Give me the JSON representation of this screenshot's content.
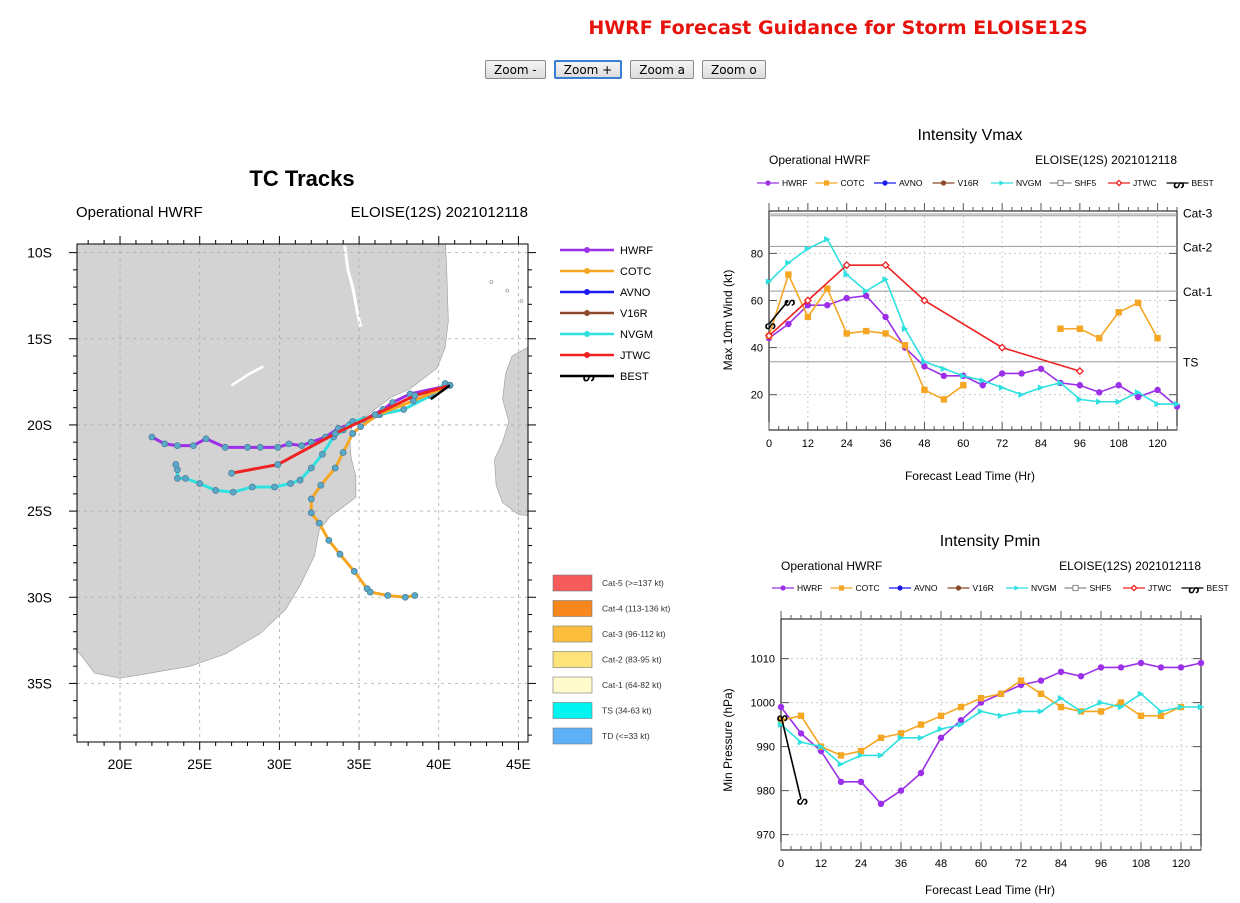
{
  "page": {
    "title": "HWRF Forecast Guidance for Storm ELOISE12S"
  },
  "toolbar": {
    "buttons": [
      "Zoom -",
      "Zoom +",
      "Zoom a",
      "Zoom o"
    ]
  },
  "colors": {
    "HWRF": "#9b30e8",
    "COTC": "#f5a623",
    "AVNO": "#1a1aee",
    "V16R": "#8b4a2b",
    "NVGM": "#2fe0e0",
    "SHF5": "#888888",
    "JTWC": "#ee2222",
    "BEST": "#000000",
    "land": "#d3d3d3",
    "title": "#e8120c"
  },
  "chart_data": [
    {
      "type": "map-tracks",
      "title": "TC Tracks",
      "subtitle_left": "Operational HWRF",
      "subtitle_right": "ELOISE(12S) 2021012118",
      "lon_range": [
        17.3,
        45.6
      ],
      "lat_range_south": [
        9.5,
        38.4
      ],
      "lon_ticks": [
        "20E",
        "25E",
        "30E",
        "35E",
        "40E",
        "45E"
      ],
      "lat_ticks": [
        "10S",
        "15S",
        "20S",
        "25S",
        "30S",
        "35S"
      ],
      "grid": true,
      "legend": [
        "HWRF",
        "COTC",
        "AVNO",
        "V16R",
        "NVGM",
        "JTWC",
        "BEST"
      ],
      "category_legend": [
        {
          "label": "Cat-5 (>=137 kt)",
          "color": "#f55b5b"
        },
        {
          "label": "Cat-4 (113-136 kt)",
          "color": "#f7871e"
        },
        {
          "label": "Cat-3 (96-112 kt)",
          "color": "#fbbd3c"
        },
        {
          "label": "Cat-2 (83-95 kt)",
          "color": "#fde37a"
        },
        {
          "label": "Cat-1 (64-82 kt)",
          "color": "#fffbcc"
        },
        {
          "label": "TS (34-63 kt)",
          "color": "#00f5f0"
        },
        {
          "label": "TD (<=33 kt)",
          "color": "#5cb0f5"
        }
      ],
      "tracks": {
        "HWRF": [
          [
            40.7,
            17.7
          ],
          [
            38.2,
            18.2
          ],
          [
            37.1,
            18.7
          ],
          [
            36.5,
            19.1
          ],
          [
            35.3,
            19.7
          ],
          [
            34.4,
            20.0
          ],
          [
            33.7,
            20.2
          ],
          [
            32.9,
            20.7
          ],
          [
            32.0,
            21.0
          ],
          [
            31.4,
            21.2
          ],
          [
            30.6,
            21.1
          ],
          [
            29.9,
            21.3
          ],
          [
            28.8,
            21.3
          ],
          [
            28.0,
            21.3
          ],
          [
            26.6,
            21.3
          ],
          [
            25.4,
            20.8
          ],
          [
            24.6,
            21.2
          ],
          [
            23.6,
            21.2
          ],
          [
            22.8,
            21.1
          ],
          [
            22.0,
            20.7
          ]
        ],
        "COTC": [
          [
            40.7,
            17.7
          ],
          [
            38.4,
            18.6
          ],
          [
            36.2,
            19.4
          ],
          [
            35.1,
            20.1
          ],
          [
            34.6,
            20.5
          ],
          [
            34.0,
            21.6
          ],
          [
            33.5,
            22.5
          ],
          [
            32.6,
            23.5
          ],
          [
            32.0,
            24.3
          ],
          [
            32.0,
            25.1
          ],
          [
            32.5,
            25.7
          ],
          [
            33.1,
            26.7
          ],
          [
            33.8,
            27.5
          ],
          [
            34.7,
            28.5
          ],
          [
            35.5,
            29.5
          ],
          [
            35.7,
            29.7
          ],
          [
            36.8,
            29.9
          ],
          [
            37.9,
            30.0
          ],
          [
            38.5,
            29.9
          ]
        ],
        "NVGM": [
          [
            40.4,
            17.6
          ],
          [
            39.5,
            18.3
          ],
          [
            37.8,
            19.1
          ],
          [
            36.3,
            19.4
          ],
          [
            34.6,
            19.8
          ],
          [
            34.0,
            20.3
          ],
          [
            33.4,
            20.7
          ],
          [
            32.7,
            21.7
          ],
          [
            32.0,
            22.5
          ],
          [
            31.3,
            23.2
          ],
          [
            30.7,
            23.4
          ],
          [
            29.7,
            23.6
          ],
          [
            28.3,
            23.6
          ],
          [
            27.1,
            23.9
          ],
          [
            26.0,
            23.8
          ],
          [
            25.0,
            23.4
          ],
          [
            24.1,
            23.1
          ],
          [
            23.6,
            23.1
          ],
          [
            23.6,
            22.6
          ],
          [
            23.5,
            22.3
          ]
        ],
        "JTWC": [
          [
            40.7,
            17.7
          ],
          [
            38.5,
            18.3
          ],
          [
            36.0,
            19.4
          ],
          [
            33.5,
            20.5
          ],
          [
            29.9,
            22.3
          ],
          [
            27.0,
            22.8
          ]
        ],
        "BEST": [
          [
            39.5,
            18.5
          ],
          [
            40.7,
            17.7
          ]
        ]
      }
    },
    {
      "type": "line",
      "title": "Intensity Vmax",
      "subtitle_left": "Operational HWRF",
      "subtitle_right": "ELOISE(12S) 2021012118",
      "xlabel": "Forecast Lead Time (Hr)",
      "ylabel": "Max 10m Wind (kt)",
      "xlim": [
        0,
        126
      ],
      "ylim": [
        5,
        98
      ],
      "xticks": [
        0,
        12,
        24,
        36,
        48,
        60,
        72,
        84,
        96,
        108,
        120
      ],
      "yticks": [
        20,
        40,
        60,
        80
      ],
      "grid": true,
      "legend": [
        "HWRF",
        "COTC",
        "AVNO",
        "V16R",
        "NVGM",
        "SHF5",
        "JTWC",
        "BEST"
      ],
      "thresholds": [
        {
          "label": "TS",
          "value": 34
        },
        {
          "label": "Cat-1",
          "value": 64
        },
        {
          "label": "Cat-2",
          "value": 83
        },
        {
          "label": "Cat-3",
          "value": 96
        }
      ],
      "series": [
        {
          "name": "HWRF",
          "x": [
            0,
            6,
            12,
            18,
            24,
            30,
            36,
            42,
            48,
            54,
            60,
            66,
            72,
            78,
            84,
            90,
            96,
            102,
            108,
            114,
            120,
            126
          ],
          "y": [
            44,
            50,
            58,
            58,
            61,
            62,
            53,
            40,
            32,
            28,
            28,
            24,
            29,
            29,
            31,
            25,
            24,
            21,
            24,
            19,
            22,
            15
          ]
        },
        {
          "name": "COTC",
          "x": [
            0,
            6,
            12,
            18,
            24,
            30,
            36,
            42,
            48,
            54,
            60
          ],
          "y": [
            45,
            71,
            53,
            65,
            46,
            47,
            46,
            41,
            22,
            18,
            24
          ]
        },
        {
          "name": "COTC",
          "x": [
            90,
            96,
            102,
            108,
            114,
            120
          ],
          "y": [
            48,
            48,
            44,
            55,
            59,
            44
          ]
        },
        {
          "name": "NVGM",
          "x": [
            0,
            6,
            12,
            18,
            24,
            30,
            36,
            42,
            48,
            54,
            60,
            66,
            72,
            78,
            84,
            90,
            96,
            102,
            108,
            114,
            120,
            126
          ],
          "y": [
            68,
            76,
            82,
            86,
            71,
            64,
            69,
            48,
            34,
            31,
            28,
            26,
            23,
            20,
            23,
            25,
            18,
            17,
            17,
            21,
            16,
            16
          ]
        },
        {
          "name": "JTWC",
          "x": [
            0,
            12,
            24,
            36,
            48,
            72,
            96
          ],
          "y": [
            45,
            60,
            75,
            75,
            60,
            40,
            30
          ]
        },
        {
          "name": "BEST",
          "x": [
            0,
            6
          ],
          "y": [
            50,
            60
          ]
        }
      ]
    },
    {
      "type": "line",
      "title": "Intensity Pmin",
      "subtitle_left": "Operational HWRF",
      "subtitle_right": "ELOISE(12S) 2021012118",
      "xlabel": "Forecast Lead Time (Hr)",
      "ylabel": "Min Pressure (hPa)",
      "xlim": [
        0,
        126
      ],
      "ylim": [
        966.5,
        1019
      ],
      "xticks": [
        0,
        12,
        24,
        36,
        48,
        60,
        72,
        84,
        96,
        108,
        120
      ],
      "yticks": [
        970,
        980,
        990,
        1000,
        1010
      ],
      "grid": true,
      "legend": [
        "HWRF",
        "COTC",
        "AVNO",
        "V16R",
        "NVGM",
        "SHF5",
        "JTWC",
        "BEST"
      ],
      "thresholds": [],
      "series": [
        {
          "name": "HWRF",
          "x": [
            0,
            6,
            12,
            18,
            24,
            30,
            36,
            42,
            48,
            54,
            60,
            66,
            72,
            78,
            84,
            90,
            96,
            102,
            108,
            114,
            120,
            126
          ],
          "y": [
            999,
            993,
            989,
            982,
            982,
            977,
            980,
            984,
            992,
            996,
            1000,
            1002,
            1004,
            1005,
            1007,
            1006,
            1008,
            1008,
            1009,
            1008,
            1008,
            1009
          ]
        },
        {
          "name": "COTC",
          "x": [
            0,
            6,
            12,
            18,
            24,
            30,
            36,
            42,
            48,
            54,
            60,
            66,
            72,
            78,
            84,
            90,
            96,
            102,
            108,
            114,
            120
          ],
          "y": [
            996,
            997,
            990,
            988,
            989,
            992,
            993,
            995,
            997,
            999,
            1001,
            1002,
            1005,
            1002,
            999,
            998,
            998,
            1000,
            997,
            997,
            999
          ]
        },
        {
          "name": "NVGM",
          "x": [
            0,
            6,
            12,
            18,
            24,
            30,
            36,
            42,
            48,
            54,
            60,
            66,
            72,
            78,
            84,
            90,
            96,
            102,
            108,
            114,
            120,
            126
          ],
          "y": [
            995,
            991,
            990,
            986,
            988,
            988,
            992,
            992,
            994,
            995,
            998,
            997,
            998,
            998,
            1001,
            998,
            1000,
            999,
            1002,
            998,
            999,
            999
          ]
        },
        {
          "name": "BEST",
          "x": [
            0,
            6
          ],
          "y": [
            997,
            978
          ]
        }
      ]
    }
  ]
}
